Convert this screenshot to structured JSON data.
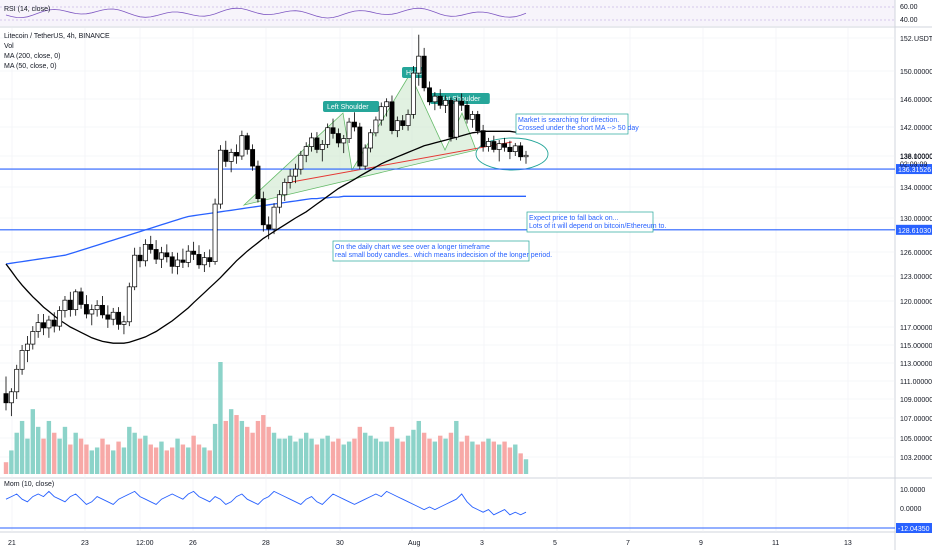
{
  "chart_data": {
    "type": "candlestick",
    "symbol_title": "Litecoin / TetherUS, 4h, BINANCE",
    "indicators": [
      "Vol",
      "MA (200, close, 0)",
      "MA (50, close, 0)"
    ],
    "rsi": {
      "label": "RSI (14, close)",
      "ticks": [
        "60.00",
        "40.00"
      ]
    },
    "momentum": {
      "label": "Mom (10, close)",
      "ticks": [
        "10.0000",
        "0.0000"
      ],
      "current": "-12.04350"
    },
    "currency": "USDT",
    "price_ticks": [
      "152.00000",
      "150.00000",
      "146.00000",
      "142.00000",
      "138.00000",
      "134.00000",
      "130.00000",
      "126.00000",
      "123.00000",
      "120.00000",
      "117.00000",
      "115.00000",
      "113.00000",
      "111.00000",
      "109.00000",
      "107.00000",
      "105.00000",
      "103.20000"
    ],
    "x_ticks": [
      "21",
      "23",
      "12:00",
      "26",
      "28",
      "30",
      "Aug",
      "3",
      "5",
      "7",
      "9",
      "11",
      "13"
    ],
    "last_price": {
      "value": "138.10000",
      "countdown": "02:09:09"
    },
    "levels": [
      {
        "value": "136.31526",
        "color": "#2962ff"
      },
      {
        "value": "128.61030",
        "color": "#2962ff"
      }
    ],
    "pattern_labels": [
      "Left Shoulder",
      "Head",
      "Right Shoulder"
    ],
    "annotations": [
      {
        "lines": [
          "Market is searching for direction.",
          "Crossed under the short MA --> 50 day"
        ]
      },
      {
        "lines": [
          "Expect price to fall back on...",
          "Lots of it will depend on bitcoin/Ethereum to."
        ]
      },
      {
        "lines": [
          "On the daily chart we see over a longer timeframe",
          "real small body candles.. which means indecision of the longer period."
        ]
      }
    ],
    "colors": {
      "up": "#26a69a",
      "down": "#ef5350",
      "vol_up": "#8cd3c9",
      "vol_down": "#f7a9a7",
      "ma200": "#2962ff",
      "ma50": "#000000",
      "pattern_fill": "#c8e6c9"
    },
    "candles": [
      [
        109.6,
        111.5,
        107.8,
        108.6
      ],
      [
        108.6,
        110.2,
        107.2,
        109.8
      ],
      [
        109.8,
        112.8,
        109.0,
        112.3
      ],
      [
        112.3,
        115.0,
        111.7,
        114.4
      ],
      [
        114.4,
        116.0,
        113.1,
        115.1
      ],
      [
        115.1,
        117.1,
        114.5,
        116.5
      ],
      [
        116.5,
        118.5,
        115.8,
        117.5
      ],
      [
        117.5,
        118.5,
        116.1,
        116.9
      ],
      [
        116.9,
        118.3,
        115.8,
        117.8
      ],
      [
        117.8,
        118.7,
        116.4,
        117.1
      ],
      [
        117.1,
        119.4,
        116.6,
        118.9
      ],
      [
        118.9,
        120.6,
        118.1,
        120.1
      ],
      [
        120.1,
        121.1,
        118.2,
        119.0
      ],
      [
        119.0,
        121.4,
        118.3,
        121.1
      ],
      [
        121.1,
        121.6,
        119.1,
        119.6
      ],
      [
        119.6,
        120.7,
        118.0,
        118.5
      ],
      [
        118.5,
        119.6,
        117.2,
        119.0
      ],
      [
        119.0,
        120.1,
        118.2,
        119.5
      ],
      [
        119.5,
        120.6,
        118.0,
        118.4
      ],
      [
        118.4,
        119.5,
        116.9,
        117.9
      ],
      [
        117.9,
        119.2,
        117.2,
        118.7
      ],
      [
        118.7,
        119.3,
        116.7,
        117.3
      ],
      [
        117.3,
        118.3,
        116.2,
        117.6
      ],
      [
        117.6,
        122.2,
        117.1,
        121.7
      ],
      [
        121.7,
        126.5,
        121.3,
        125.6
      ],
      [
        125.6,
        126.6,
        124.1,
        124.9
      ],
      [
        124.9,
        127.5,
        124.2,
        126.9
      ],
      [
        126.9,
        127.9,
        125.8,
        126.3
      ],
      [
        126.3,
        127.4,
        124.5,
        125.1
      ],
      [
        125.1,
        126.6,
        124.0,
        125.9
      ],
      [
        125.9,
        126.9,
        124.7,
        125.4
      ],
      [
        125.4,
        126.0,
        123.3,
        124.2
      ],
      [
        124.2,
        125.9,
        123.2,
        125.0
      ],
      [
        125.0,
        126.4,
        124.0,
        124.7
      ],
      [
        124.7,
        126.8,
        124.1,
        126.1
      ],
      [
        126.1,
        127.2,
        125.0,
        125.7
      ],
      [
        125.7,
        126.8,
        123.9,
        124.4
      ],
      [
        124.4,
        126.0,
        123.5,
        125.3
      ],
      [
        125.3,
        126.3,
        124.1,
        124.8
      ],
      [
        124.8,
        132.5,
        124.4,
        131.8
      ],
      [
        131.8,
        139.5,
        131.2,
        138.8
      ],
      [
        138.8,
        140.1,
        136.6,
        137.3
      ],
      [
        137.3,
        139.0,
        135.9,
        138.5
      ],
      [
        138.5,
        139.6,
        137.0,
        138.0
      ],
      [
        138.0,
        141.5,
        137.5,
        140.8
      ],
      [
        140.8,
        141.2,
        138.2,
        138.9
      ],
      [
        138.9,
        139.6,
        136.1,
        136.7
      ],
      [
        136.7,
        137.4,
        132.0,
        132.5
      ],
      [
        132.5,
        133.4,
        128.4,
        129.2
      ],
      [
        129.2,
        130.2,
        127.5,
        128.7
      ],
      [
        128.7,
        131.9,
        128.1,
        131.4
      ],
      [
        131.4,
        133.6,
        130.6,
        133.0
      ],
      [
        133.0,
        135.1,
        132.2,
        134.6
      ],
      [
        134.6,
        136.3,
        133.8,
        135.4
      ],
      [
        135.4,
        137.0,
        134.5,
        136.3
      ],
      [
        136.3,
        138.7,
        135.6,
        138.1
      ],
      [
        138.1,
        139.9,
        137.2,
        139.3
      ],
      [
        139.3,
        141.2,
        138.6,
        140.5
      ],
      [
        140.5,
        141.3,
        138.4,
        138.9
      ],
      [
        138.9,
        140.2,
        137.3,
        139.6
      ],
      [
        139.6,
        142.5,
        139.1,
        141.9
      ],
      [
        141.9,
        143.2,
        140.4,
        141.1
      ],
      [
        141.1,
        141.8,
        139.2,
        139.8
      ],
      [
        139.8,
        140.9,
        138.4,
        140.4
      ],
      [
        140.4,
        143.3,
        139.8,
        142.7
      ],
      [
        142.7,
        144.1,
        141.4,
        142.0
      ],
      [
        142.0,
        142.6,
        136.3,
        136.7
      ],
      [
        136.7,
        139.6,
        136.2,
        139.1
      ],
      [
        139.1,
        141.7,
        138.5,
        141.2
      ],
      [
        141.2,
        143.5,
        140.7,
        143.0
      ],
      [
        143.0,
        145.5,
        142.2,
        144.9
      ],
      [
        144.9,
        146.1,
        143.5,
        145.6
      ],
      [
        145.6,
        146.5,
        141.0,
        141.5
      ],
      [
        141.5,
        143.5,
        140.6,
        142.9
      ],
      [
        142.9,
        143.7,
        141.6,
        142.2
      ],
      [
        142.2,
        144.5,
        141.5,
        143.8
      ],
      [
        143.8,
        150.3,
        143.2,
        149.7
      ],
      [
        149.7,
        152.2,
        147.9,
        150.9
      ],
      [
        150.9,
        151.4,
        147.1,
        147.6
      ],
      [
        147.6,
        148.5,
        145.1,
        145.6
      ],
      [
        145.6,
        147.0,
        144.4,
        146.4
      ],
      [
        146.4,
        147.4,
        144.6,
        145.1
      ],
      [
        145.1,
        146.5,
        144.0,
        145.8
      ],
      [
        145.8,
        146.2,
        140.0,
        140.6
      ],
      [
        140.6,
        146.2,
        140.2,
        145.7
      ],
      [
        145.7,
        146.8,
        144.3,
        145.1
      ],
      [
        145.1,
        145.7,
        142.5,
        143.1
      ],
      [
        143.1,
        144.3,
        141.9,
        143.8
      ],
      [
        143.8,
        144.3,
        141.0,
        141.5
      ],
      [
        141.5,
        142.3,
        138.6,
        139.3
      ],
      [
        139.3,
        140.5,
        138.6,
        140.0
      ],
      [
        140.0,
        140.8,
        138.5,
        138.9
      ],
      [
        138.9,
        140.2,
        137.3,
        139.7
      ],
      [
        139.7,
        140.5,
        138.6,
        139.2
      ],
      [
        139.2,
        140.1,
        137.6,
        138.6
      ],
      [
        138.6,
        139.8,
        138.0,
        139.4
      ],
      [
        139.4,
        139.9,
        137.4,
        137.9
      ],
      [
        137.9,
        138.7,
        137.0,
        138.1
      ]
    ],
    "volume": [
      4,
      8,
      14,
      18,
      12,
      22,
      16,
      12,
      18,
      14,
      12,
      16,
      10,
      14,
      12,
      10,
      8,
      9,
      12,
      10,
      8,
      11,
      9,
      16,
      14,
      12,
      13,
      10,
      9,
      11,
      8,
      9,
      12,
      10,
      9,
      13,
      10,
      9,
      8,
      17,
      38,
      18,
      22,
      20,
      18,
      16,
      14,
      18,
      20,
      16,
      14,
      12,
      12,
      13,
      11,
      12,
      14,
      12,
      10,
      12,
      13,
      11,
      12,
      10,
      11,
      12,
      16,
      14,
      13,
      12,
      11,
      11,
      16,
      12,
      11,
      13,
      15,
      18,
      14,
      12,
      11,
      13,
      12,
      14,
      18,
      11,
      13,
      11,
      10,
      11,
      12,
      11,
      10,
      11,
      9,
      10,
      7,
      5
    ],
    "ma200": [
      124.5,
      123.6,
      122.7,
      121.9,
      121.2,
      120.5,
      119.9,
      119.3,
      118.8,
      118.3,
      117.8,
      117.4,
      117.0,
      116.7,
      116.4,
      116.1,
      115.8,
      115.6,
      115.4,
      115.3,
      115.2,
      115.2,
      115.2,
      115.3,
      115.5,
      115.7,
      115.9,
      116.2,
      116.5,
      116.9,
      117.3,
      117.7,
      118.2,
      118.7,
      119.2,
      119.8,
      120.4,
      121.0,
      121.6,
      122.2,
      122.8,
      123.5,
      124.2,
      124.9,
      125.5,
      126.1,
      126.6,
      127.1,
      127.6,
      128.0,
      128.4,
      128.8,
      129.2,
      129.6,
      130.0,
      130.4,
      130.8,
      131.3,
      131.8,
      132.3,
      132.8,
      133.3,
      133.8,
      134.2,
      134.6,
      135.0,
      135.4,
      135.8,
      136.2,
      136.6,
      137.0,
      137.3,
      137.6,
      137.9,
      138.2,
      138.5,
      138.8,
      139.1,
      139.4,
      139.6,
      139.8,
      140.0,
      140.2,
      140.4,
      140.6,
      140.8,
      141.0,
      141.2,
      141.3,
      141.4,
      141.4,
      141.4,
      141.4,
      141.4,
      141.4,
      141.3,
      141.3,
      141.2
    ],
    "ma50": [
      124.5,
      124.6,
      124.7,
      124.8,
      124.9,
      125.0,
      125.1,
      125.2,
      125.3,
      125.4,
      125.5,
      125.6,
      125.8,
      126.0,
      126.2,
      126.4,
      126.6,
      126.8,
      127.0,
      127.2,
      127.4,
      127.6,
      127.8,
      128.0,
      128.2,
      128.4,
      128.6,
      128.8,
      129.0,
      129.2,
      129.4,
      129.6,
      129.8,
      130.0,
      130.2,
      130.3,
      130.4,
      130.5,
      130.6,
      130.7,
      130.8,
      130.9,
      131.0,
      131.1,
      131.2,
      131.3,
      131.4,
      131.5,
      131.6,
      131.7,
      131.8,
      131.9,
      132.0,
      132.1,
      132.2,
      132.3,
      132.4,
      132.5,
      132.5,
      132.6,
      132.6,
      132.7,
      132.7,
      132.8,
      132.8,
      132.8,
      132.8,
      132.8,
      132.8,
      132.8,
      132.8,
      132.8,
      132.8,
      132.8,
      132.8,
      132.8,
      132.8,
      132.8,
      132.8,
      132.8,
      132.8,
      132.8,
      132.8,
      132.8,
      132.8,
      132.8,
      132.8,
      132.8,
      132.8,
      132.8,
      132.8,
      132.8,
      132.8,
      132.8,
      132.8,
      132.8,
      132.8,
      132.8
    ]
  }
}
